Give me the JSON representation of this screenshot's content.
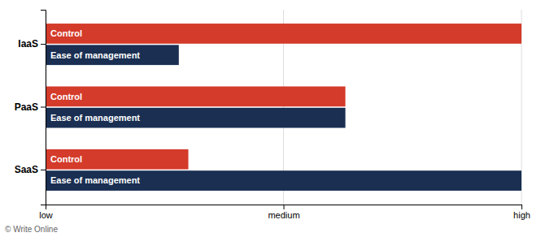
{
  "chart_data": {
    "type": "bar",
    "orientation": "horizontal",
    "categories": [
      "IaaS",
      "PaaS",
      "SaaS"
    ],
    "series": [
      {
        "name": "Control",
        "color": "#d43b2a",
        "values": [
          1.0,
          0.63,
          0.3
        ]
      },
      {
        "name": "Ease of management",
        "color": "#1a2f52",
        "values": [
          0.28,
          0.63,
          1.0
        ]
      }
    ],
    "xlim": [
      0,
      1
    ],
    "xticks": [
      {
        "value": 0,
        "label": "low"
      },
      {
        "value": 0.5,
        "label": "medium"
      },
      {
        "value": 1,
        "label": "high"
      }
    ],
    "grid": true,
    "annotations": [
      "© Write Online"
    ]
  }
}
